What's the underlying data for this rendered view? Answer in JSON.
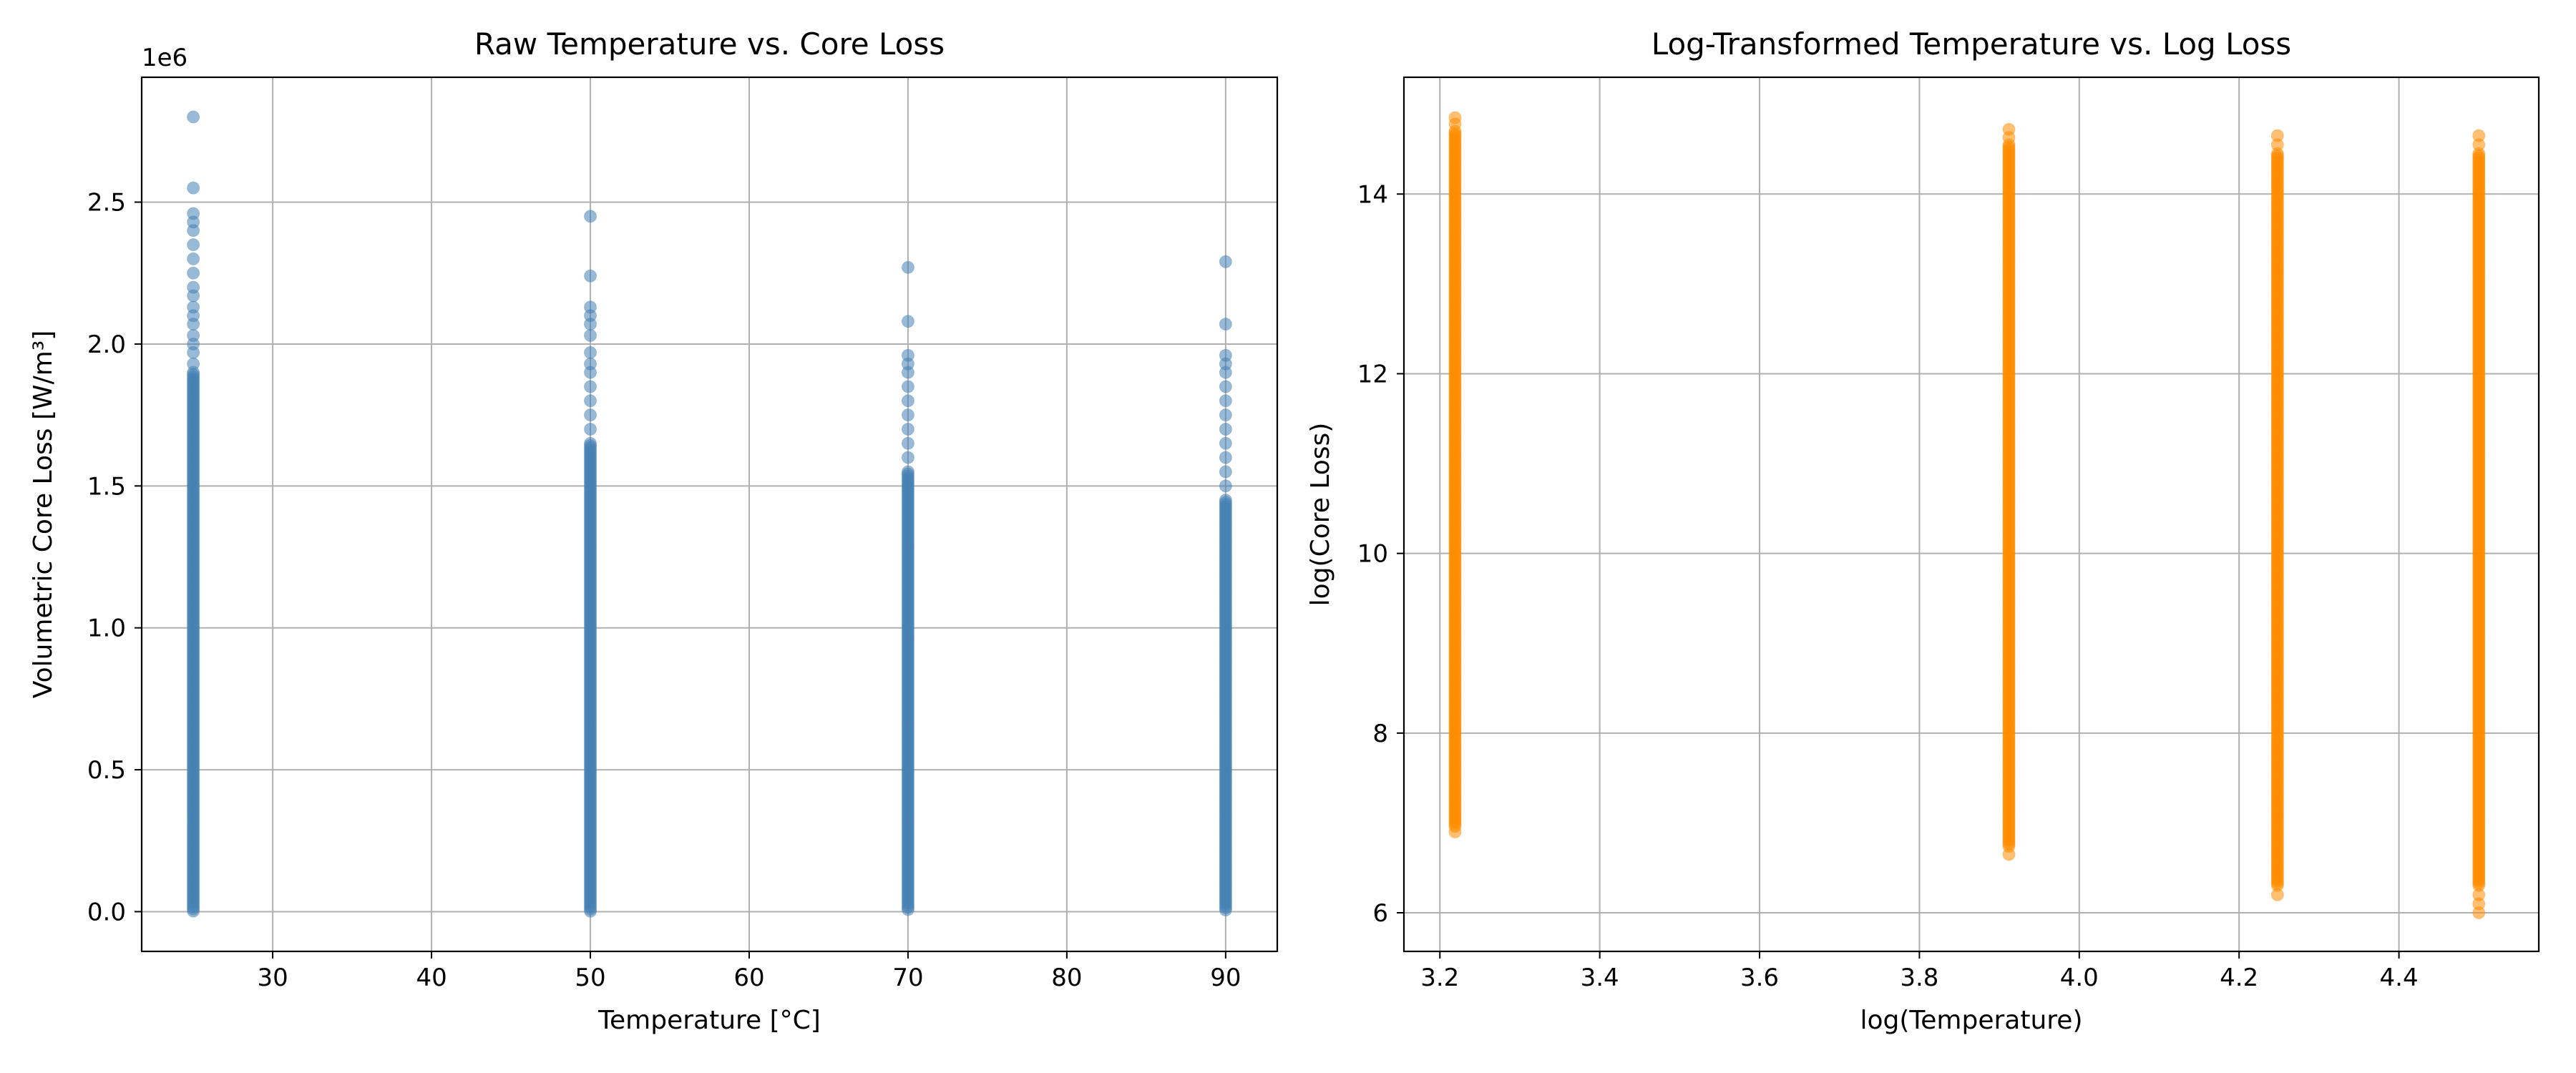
{
  "chart_data": [
    {
      "type": "scatter",
      "title": "Raw Temperature vs. Core Loss",
      "xlabel": "Temperature [°C]",
      "ylabel": "Volumetric Core Loss [W/m³]",
      "offset_text": "1e6",
      "y_multiplier": 1000000,
      "xlim": [
        21.75,
        93.25
      ],
      "ylim": [
        -0.14,
        2.94
      ],
      "xticks": [
        30,
        40,
        50,
        60,
        70,
        80,
        90
      ],
      "xtick_labels": [
        "30",
        "40",
        "50",
        "60",
        "70",
        "80",
        "90"
      ],
      "yticks": [
        0.0,
        0.5,
        1.0,
        1.5,
        2.0,
        2.5
      ],
      "ytick_labels": [
        "0.0",
        "0.5",
        "1.0",
        "1.5",
        "2.0",
        "2.5"
      ],
      "grid": true,
      "color": "#4682b4",
      "opacity": 0.55,
      "series": [
        {
          "x": 25,
          "dense_range": [
            0.0,
            1.9
          ],
          "outliers": [
            1.93,
            1.97,
            2.0,
            2.03,
            2.07,
            2.1,
            2.13,
            2.17,
            2.2,
            2.25,
            2.3,
            2.35,
            2.4,
            2.43,
            2.46,
            2.55,
            2.8
          ]
        },
        {
          "x": 50,
          "dense_range": [
            0.0,
            1.65
          ],
          "outliers": [
            1.7,
            1.75,
            1.8,
            1.85,
            1.9,
            1.93,
            1.97,
            2.03,
            2.07,
            2.1,
            2.13,
            2.24,
            2.45
          ]
        },
        {
          "x": 70,
          "dense_range": [
            0.0,
            1.55
          ],
          "outliers": [
            1.6,
            1.65,
            1.7,
            1.75,
            1.8,
            1.85,
            1.9,
            1.93,
            1.96,
            2.08,
            2.27
          ]
        },
        {
          "x": 90,
          "dense_range": [
            0.0,
            1.45
          ],
          "outliers": [
            1.5,
            1.55,
            1.6,
            1.65,
            1.7,
            1.75,
            1.8,
            1.85,
            1.9,
            1.93,
            1.96,
            2.07,
            2.29
          ]
        }
      ]
    },
    {
      "type": "scatter",
      "title": "Log-Transformed Temperature vs. Log Loss",
      "xlabel": "log(Temperature)",
      "ylabel": "log(Core Loss)",
      "xlim": [
        3.155,
        4.575
      ],
      "ylim": [
        5.57,
        15.3
      ],
      "xticks": [
        3.2,
        3.4,
        3.6,
        3.8,
        4.0,
        4.2,
        4.4
      ],
      "xtick_labels": [
        "3.2",
        "3.4",
        "3.6",
        "3.8",
        "4.0",
        "4.2",
        "4.4"
      ],
      "yticks": [
        6,
        8,
        10,
        12,
        14
      ],
      "ytick_labels": [
        "6",
        "8",
        "10",
        "12",
        "14"
      ],
      "grid": true,
      "color": "#ff8c00",
      "opacity": 0.55,
      "series": [
        {
          "x": 3.219,
          "dense_range": [
            6.95,
            14.7
          ],
          "outliers": [
            6.9,
            14.78,
            14.85
          ]
        },
        {
          "x": 3.912,
          "dense_range": [
            6.72,
            14.55
          ],
          "outliers": [
            6.65,
            14.63,
            14.72
          ]
        },
        {
          "x": 4.248,
          "dense_range": [
            6.3,
            14.45
          ],
          "outliers": [
            6.2,
            14.55,
            14.65
          ]
        },
        {
          "x": 4.5,
          "dense_range": [
            6.3,
            14.45
          ],
          "outliers": [
            6.0,
            6.1,
            6.2,
            14.55,
            14.65
          ]
        }
      ]
    }
  ]
}
